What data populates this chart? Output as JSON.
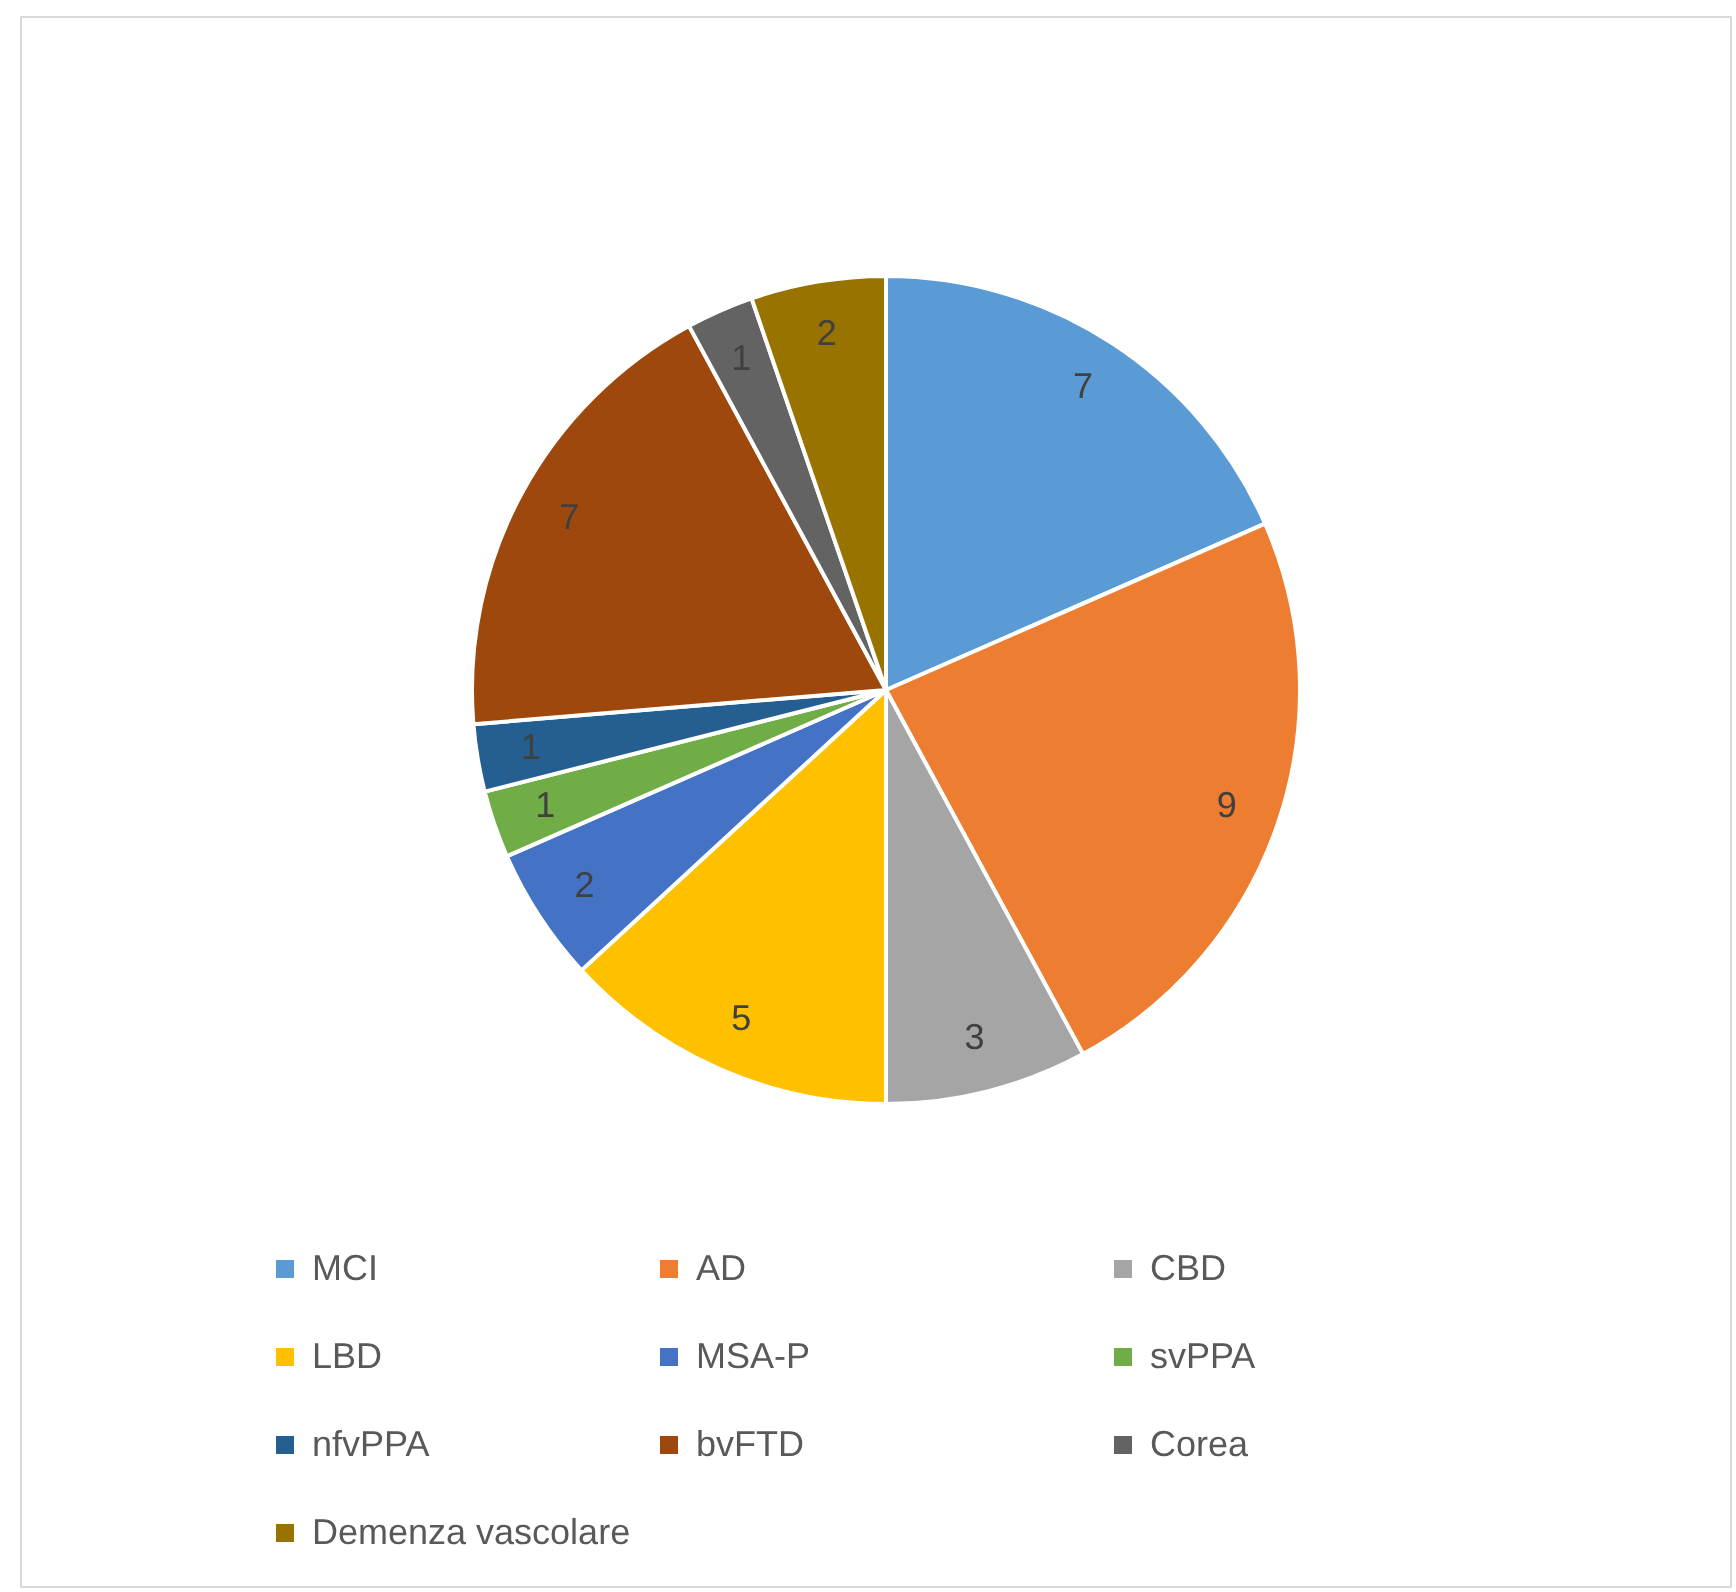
{
  "chart_data": {
    "type": "pie",
    "categories": [
      "MCI",
      "AD",
      "CBD",
      "LBD",
      "MSA-P",
      "svPPA",
      "nfvPPA",
      "bvFTD",
      "Corea",
      "Demenza vascolare"
    ],
    "values": [
      7,
      9,
      3,
      5,
      2,
      1,
      1,
      7,
      1,
      2
    ],
    "colors": [
      "#5b9bd5",
      "#ed7d31",
      "#a5a5a5",
      "#ffc000",
      "#4472c4",
      "#70ad47",
      "#255e91",
      "#9e480e",
      "#636363",
      "#997300"
    ],
    "data_labels": true,
    "legend": "bottom"
  }
}
